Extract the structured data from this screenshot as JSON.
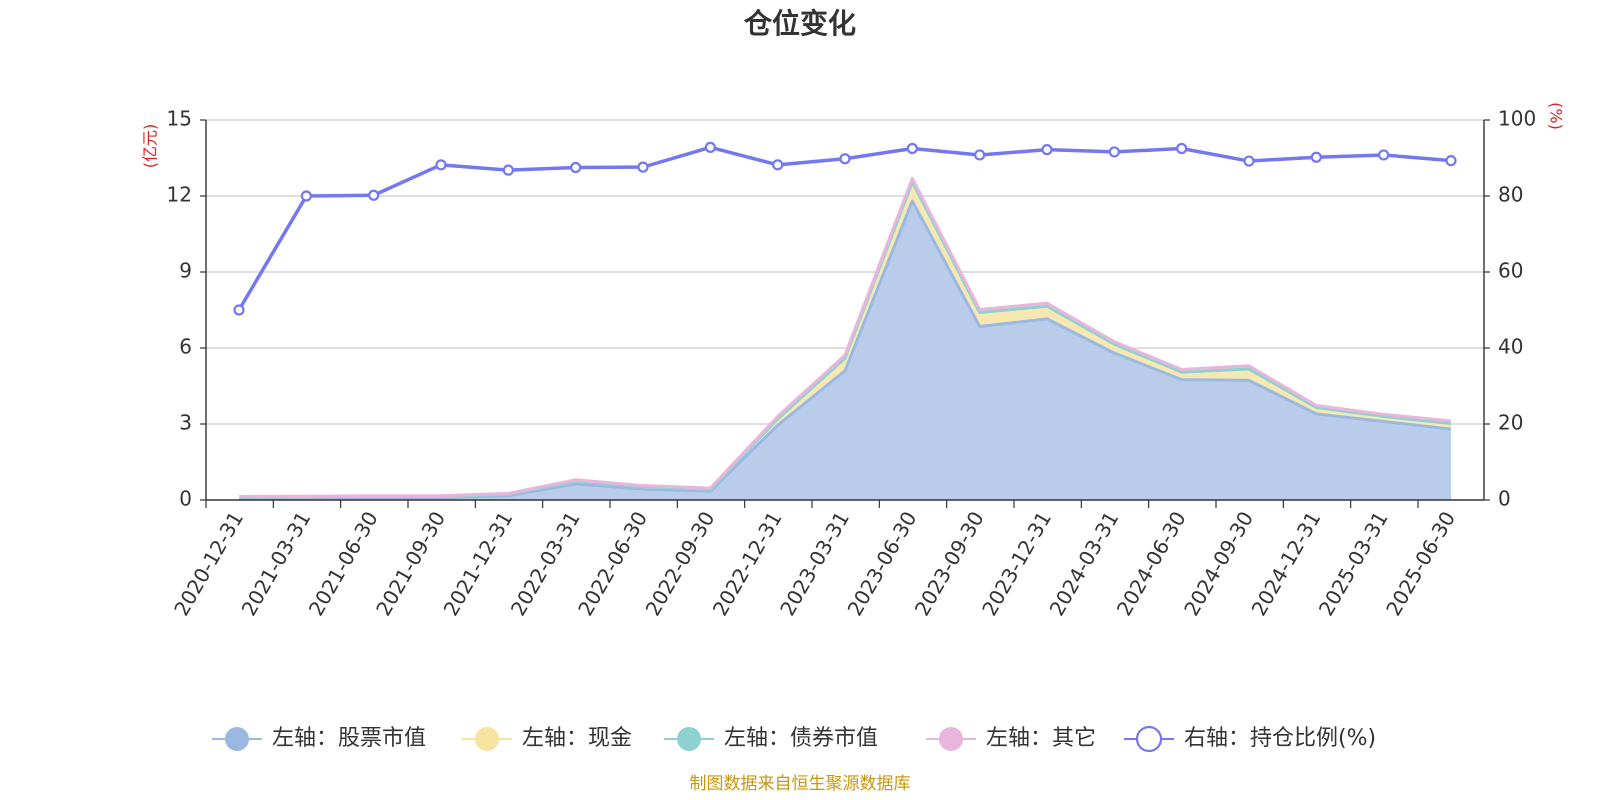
{
  "chart_data": {
    "type": "area",
    "title": "仓位变化",
    "left_axis_unit": "(亿元)",
    "right_axis_unit": "(%)",
    "left_ylim": [
      0,
      15
    ],
    "left_yticks": [
      0,
      3,
      6,
      9,
      12,
      15
    ],
    "right_ylim": [
      0,
      100
    ],
    "right_yticks": [
      0,
      20,
      40,
      60,
      80,
      100
    ],
    "grid": true,
    "legend_position": "bottom",
    "categories": [
      "2020-12-31",
      "2021-03-31",
      "2021-06-30",
      "2021-09-30",
      "2021-12-31",
      "2022-03-31",
      "2022-06-30",
      "2022-09-30",
      "2022-12-31",
      "2023-03-31",
      "2023-06-30",
      "2023-09-30",
      "2023-12-31",
      "2024-03-31",
      "2024-06-30",
      "2024-09-30",
      "2024-12-31",
      "2025-03-31",
      "2025-06-30"
    ],
    "series": [
      {
        "name": "左轴：股票市值",
        "axis": "left",
        "stack": true,
        "color": "#9bb8e3",
        "fill": "#b9cdeb",
        "values": [
          0.07,
          0.09,
          0.1,
          0.1,
          0.17,
          0.63,
          0.43,
          0.35,
          2.95,
          5.1,
          11.8,
          6.85,
          7.15,
          5.8,
          4.75,
          4.72,
          3.4,
          3.1,
          2.8
        ]
      },
      {
        "name": "左轴：现金",
        "axis": "left",
        "stack": true,
        "color": "#f5e3a0",
        "fill": "#f7e8b2",
        "values": [
          0.05,
          0.04,
          0.05,
          0.05,
          0.06,
          0.12,
          0.1,
          0.08,
          0.25,
          0.5,
          0.75,
          0.55,
          0.5,
          0.35,
          0.3,
          0.45,
          0.25,
          0.2,
          0.22
        ]
      },
      {
        "name": "左轴：债券市值",
        "axis": "left",
        "stack": true,
        "color": "#8fd1cf",
        "fill": "#a8dcda",
        "values": [
          0,
          0,
          0,
          0,
          0,
          0,
          0,
          0,
          0,
          0,
          0,
          0,
          0,
          0,
          0,
          0,
          0,
          0,
          0
        ]
      },
      {
        "name": "左轴：其它",
        "axis": "left",
        "stack": true,
        "color": "#e8b6dc",
        "fill": "#eec6e3",
        "values": [
          0.02,
          0.02,
          0.02,
          0.02,
          0.03,
          0.05,
          0.04,
          0.04,
          0.1,
          0.12,
          0.15,
          0.12,
          0.12,
          0.1,
          0.1,
          0.13,
          0.08,
          0.08,
          0.1
        ]
      },
      {
        "name": "右轴：持仓比例(%)",
        "axis": "right",
        "stack": false,
        "color": "#7478f0",
        "values": [
          50,
          80,
          80.2,
          88.2,
          86.8,
          87.5,
          87.6,
          92.8,
          88.2,
          89.8,
          92.5,
          90.8,
          92.2,
          91.6,
          92.5,
          89.2,
          90.2,
          90.8,
          89.3
        ]
      }
    ]
  },
  "source": "制图数据来自恒生聚源数据库"
}
